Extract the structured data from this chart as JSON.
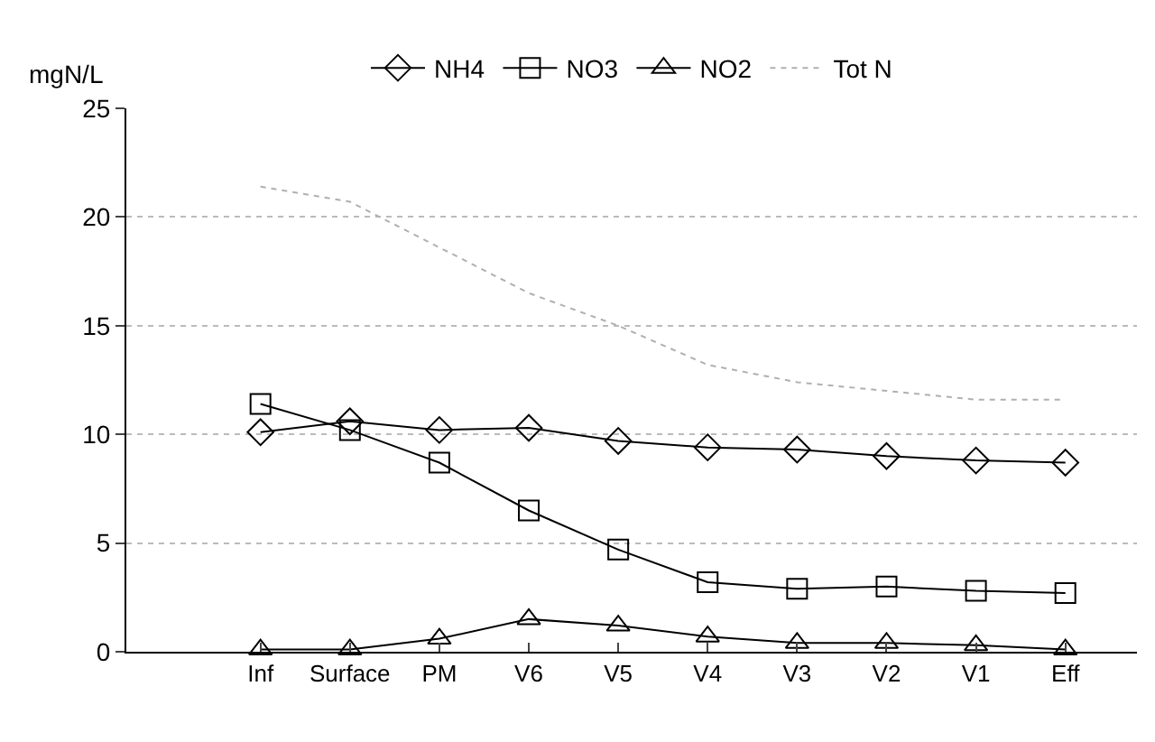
{
  "chart_data": {
    "type": "line",
    "ylabel": "mgN/L",
    "categories": [
      "Inf",
      "Surface",
      "PM",
      "V6",
      "V5",
      "V4",
      "V3",
      "V2",
      "V1",
      "Eff"
    ],
    "series": [
      {
        "name": "NH4",
        "color": "#000000",
        "marker": "diamond",
        "line_style": "solid",
        "values": [
          10.1,
          10.6,
          10.2,
          10.3,
          9.7,
          9.4,
          9.3,
          9.0,
          8.8,
          8.7
        ]
      },
      {
        "name": "NO3",
        "color": "#000000",
        "marker": "square",
        "line_style": "solid",
        "values": [
          11.4,
          10.2,
          8.7,
          6.5,
          4.7,
          3.2,
          2.9,
          3.0,
          2.8,
          2.7
        ]
      },
      {
        "name": "NO2",
        "color": "#000000",
        "marker": "triangle",
        "line_style": "solid",
        "values": [
          0.1,
          0.1,
          0.6,
          1.5,
          1.2,
          0.7,
          0.4,
          0.4,
          0.3,
          0.1
        ]
      },
      {
        "name": "Tot N",
        "color": "#b0b0b0",
        "marker": "none",
        "line_style": "dotted",
        "values": [
          21.4,
          20.7,
          18.6,
          16.5,
          15.0,
          13.2,
          12.4,
          12.0,
          11.6,
          11.6
        ]
      }
    ],
    "ylim": [
      0,
      25
    ],
    "yticks": [
      0,
      5,
      10,
      15,
      20,
      25
    ],
    "grid": "y",
    "legend": "top"
  }
}
